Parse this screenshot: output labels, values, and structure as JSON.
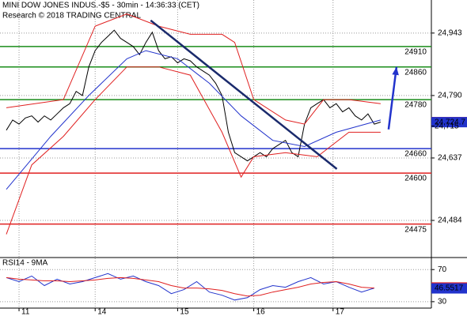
{
  "chart_data": [
    {
      "type": "line",
      "title": "MINI DOW JONES INDUS.-$5 - 30min - 14:36:33 (CET)",
      "subtitle": "Research © 2018 TRADING CENTRAL",
      "xlim": [
        0,
        68
      ],
      "ylim": [
        24395,
        25024
      ],
      "yticks": [
        {
          "value": 24943,
          "label": "24,943"
        },
        {
          "value": 24790,
          "label": "24,790"
        },
        {
          "value": 24637,
          "label": "24,637"
        },
        {
          "value": 24484,
          "label": "24,484"
        }
      ],
      "grid": true,
      "series": [
        {
          "color": "#000000",
          "x": [
            1,
            2,
            3,
            4,
            5,
            6,
            7,
            8,
            9,
            10,
            11,
            12,
            13,
            14,
            15,
            16,
            17,
            18,
            19,
            20,
            21,
            22,
            23,
            24,
            25,
            26,
            27,
            28,
            29,
            30,
            31,
            32,
            33,
            34,
            35,
            36,
            37,
            38,
            39,
            40,
            41,
            42,
            43,
            44,
            45,
            46,
            47,
            48,
            49,
            50,
            51,
            52,
            53,
            54,
            55,
            56,
            57,
            58,
            59,
            60
          ],
          "values": [
            24705,
            24730,
            24720,
            24735,
            24740,
            24725,
            24740,
            24730,
            24745,
            24760,
            24770,
            24800,
            24790,
            24860,
            24900,
            24920,
            24935,
            24950,
            24930,
            24920,
            24910,
            24890,
            24920,
            24945,
            24900,
            24880,
            24885,
            24870,
            24880,
            24875,
            24860,
            24850,
            24840,
            24820,
            24790,
            24700,
            24650,
            24640,
            24630,
            24640,
            24650,
            24640,
            24660,
            24670,
            24680,
            24650,
            24640,
            24720,
            24760,
            24770,
            24780,
            24760,
            24770,
            24750,
            24760,
            24740,
            24730,
            24745,
            24720,
            24725
          ]
        },
        {
          "color": "#2233cc",
          "x": [
            1,
            8,
            14,
            20,
            23,
            28,
            33,
            38,
            43,
            48,
            53,
            60
          ],
          "values": [
            24560,
            24690,
            24790,
            24880,
            24900,
            24880,
            24820,
            24740,
            24680,
            24665,
            24700,
            24730
          ]
        },
        {
          "color": "#e02020",
          "x": [
            1,
            10,
            15,
            20,
            25,
            30,
            35,
            37,
            40,
            45,
            48,
            51,
            55,
            60
          ],
          "values": [
            24760,
            24780,
            24960,
            24990,
            24960,
            24940,
            24940,
            24920,
            24780,
            24730,
            24720,
            24780,
            24780,
            24770
          ]
        },
        {
          "color": "#e02020",
          "x": [
            1,
            5,
            10,
            15,
            20,
            25,
            30,
            35,
            38,
            40,
            45,
            50,
            55,
            60
          ],
          "values": [
            24450,
            24620,
            24690,
            24780,
            24860,
            24860,
            24840,
            24700,
            24590,
            24640,
            24650,
            24640,
            24700,
            24700
          ]
        }
      ],
      "trendline": {
        "color": "#1a2a6c",
        "x": [
          23.75,
          53.1
        ],
        "values": [
          24974,
          24610
        ]
      },
      "arrow": {
        "color": "#2233cc",
        "x": [
          61.25,
          62.5
        ],
        "values": [
          24707,
          24860
        ]
      },
      "levels": [
        {
          "value": 24910,
          "color": "#1a8c1a"
        },
        {
          "value": 24860,
          "color": "#1a8c1a"
        },
        {
          "value": 24780,
          "color": "#1a8c1a"
        },
        {
          "value": 24660,
          "color": "#2233cc"
        },
        {
          "value": 24600,
          "color": "#e02020"
        },
        {
          "value": 24475,
          "color": "#e02020"
        }
      ],
      "price_markers": [
        {
          "value": 24725,
          "label": "24,725",
          "color": "#e02020"
        },
        {
          "value": 24724.7,
          "label": "24,724.7",
          "color": "#2233cc"
        },
        {
          "value": 24715,
          "label": "24,715"
        }
      ]
    },
    {
      "type": "line",
      "title": "RSI14 - 9MA",
      "xlim": [
        0,
        68
      ],
      "ylim": [
        22,
        84
      ],
      "yticks": [
        70,
        30
      ],
      "xticks": [
        {
          "value": 3,
          "label": "11"
        },
        {
          "value": 15,
          "label": "14"
        },
        {
          "value": 28,
          "label": "15"
        },
        {
          "value": 40,
          "label": "16"
        },
        {
          "value": 52.5,
          "label": "17"
        }
      ],
      "grid": true,
      "series": [
        {
          "color": "#2233cc",
          "x": [
            1,
            3,
            5,
            7,
            9,
            11,
            13,
            15,
            17,
            19,
            21,
            23,
            25,
            27,
            29,
            31,
            33,
            35,
            37,
            39,
            41,
            43,
            45,
            47,
            49,
            51,
            53,
            55,
            57,
            59
          ],
          "values": [
            60,
            55,
            62,
            50,
            58,
            52,
            55,
            60,
            65,
            58,
            62,
            55,
            50,
            40,
            45,
            55,
            42,
            38,
            32,
            35,
            45,
            50,
            48,
            55,
            60,
            52,
            55,
            48,
            42,
            47
          ]
        },
        {
          "color": "#e02020",
          "x": [
            1,
            3,
            5,
            7,
            9,
            11,
            13,
            15,
            17,
            19,
            21,
            23,
            25,
            27,
            29,
            31,
            33,
            35,
            37,
            39,
            41,
            43,
            45,
            47,
            49,
            51,
            53,
            55,
            57,
            59
          ],
          "values": [
            60,
            58,
            57,
            56,
            56,
            55,
            56,
            57,
            59,
            60,
            59,
            57,
            55,
            50,
            47,
            47,
            46,
            44,
            40,
            37,
            38,
            42,
            45,
            48,
            52,
            54,
            55,
            52,
            48,
            47
          ]
        }
      ],
      "price_markers": [
        {
          "value": 47.6861,
          "color": "#e02020"
        },
        {
          "value": 46.5517,
          "color": "#2233cc"
        }
      ]
    }
  ]
}
